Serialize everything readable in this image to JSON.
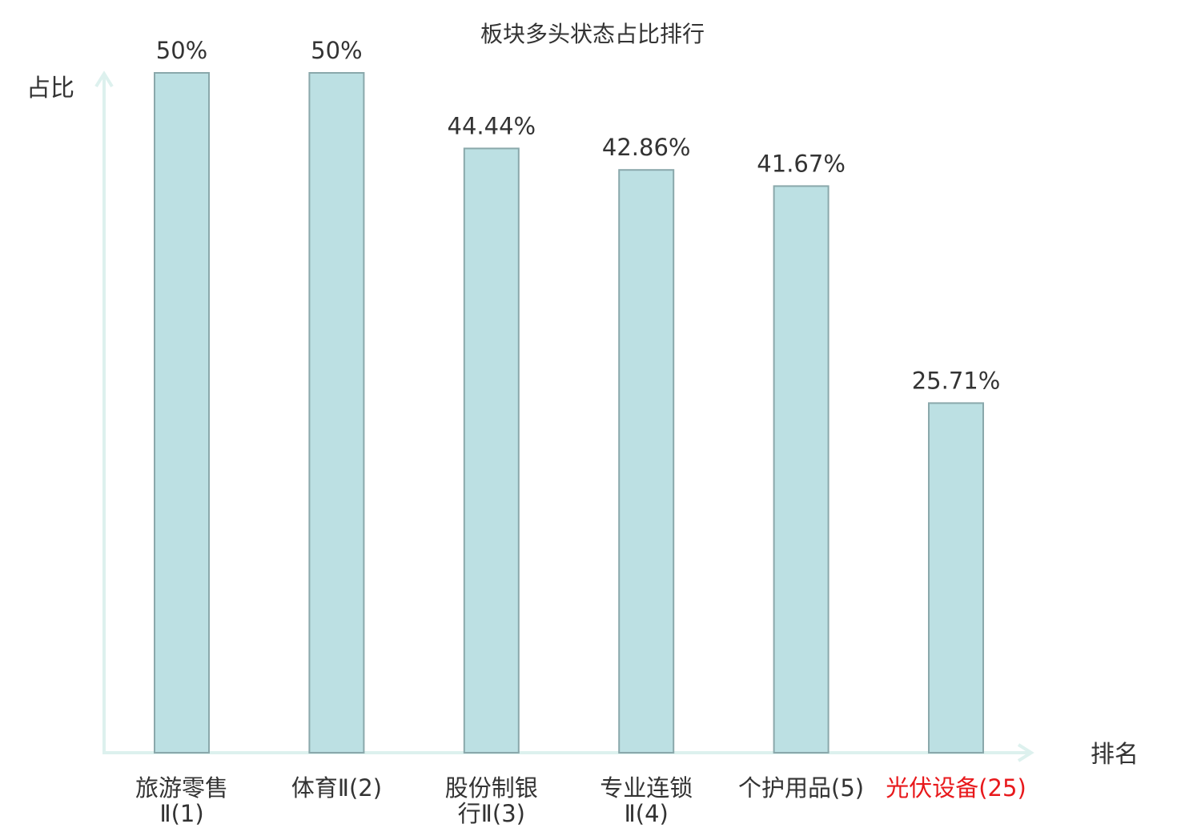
{
  "chart_data": {
    "type": "bar",
    "title": "板块多头状态占比排行",
    "ylabel": "占比",
    "xlabel": "排名",
    "ylim": [
      0,
      50
    ],
    "grid": false,
    "categories": [
      {
        "lines": [
          "旅游零售",
          "Ⅱ(1)"
        ],
        "highlight": false
      },
      {
        "lines": [
          "体育Ⅱ(2)"
        ],
        "highlight": false
      },
      {
        "lines": [
          "股份制银",
          "行Ⅱ(3)"
        ],
        "highlight": false
      },
      {
        "lines": [
          "专业连锁",
          "Ⅱ(4)"
        ],
        "highlight": false
      },
      {
        "lines": [
          "个护用品(5)"
        ],
        "highlight": false
      },
      {
        "lines": [
          "光伏设备(25)"
        ],
        "highlight": true
      }
    ],
    "values": [
      50,
      50,
      44.44,
      42.86,
      41.67,
      25.71
    ],
    "value_labels": [
      "50%",
      "50%",
      "44.44%",
      "42.86%",
      "41.67%",
      "25.71%"
    ]
  },
  "colors": {
    "bar_fill": "#bce0e3",
    "bar_stroke": "#8aa8ab",
    "axis": "#ddf1ee",
    "text": "#333333",
    "highlight": "#e8191c"
  }
}
